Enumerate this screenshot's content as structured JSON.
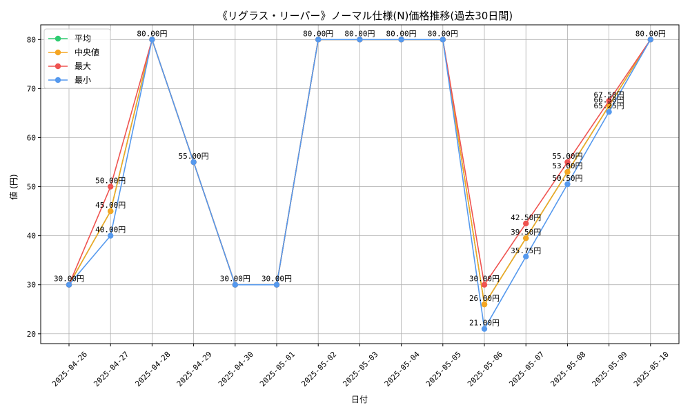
{
  "chart_data": {
    "type": "line",
    "title": "《リグラス・リーパー》ノーマル仕様(N)価格推移(過去30日間)",
    "xlabel": "日付",
    "ylabel": "値 (円)",
    "ylim": [
      18,
      83
    ],
    "yticks": [
      20,
      30,
      40,
      50,
      60,
      70,
      80
    ],
    "grid": true,
    "legend_position": "top-left",
    "categories": [
      "2025-04-26",
      "2025-04-27",
      "2025-04-28",
      "2025-04-29",
      "2025-04-30",
      "2025-05-01",
      "2025-05-02",
      "2025-05-03",
      "2025-05-04",
      "2025-05-05",
      "2025-05-06",
      "2025-05-07",
      "2025-05-08",
      "2025-05-09",
      "2025-05-10"
    ],
    "series": [
      {
        "name": "平均",
        "color": "#2ecc71",
        "values": [
          30,
          45,
          80,
          55,
          30,
          30,
          80,
          80,
          80,
          80,
          26,
          39.5,
          53,
          66.5,
          80
        ]
      },
      {
        "name": "中央値",
        "color": "#f5a623",
        "values": [
          30,
          45,
          80,
          55,
          30,
          30,
          80,
          80,
          80,
          80,
          26,
          39.5,
          53,
          66.5,
          80
        ]
      },
      {
        "name": "最大",
        "color": "#ef5350",
        "values": [
          30,
          50,
          80,
          55,
          30,
          30,
          80,
          80,
          80,
          80,
          30,
          42.5,
          55,
          67.5,
          80
        ]
      },
      {
        "name": "最小",
        "color": "#5599ee",
        "values": [
          30,
          40,
          80,
          55,
          30,
          30,
          80,
          80,
          80,
          80,
          21,
          35.75,
          50.5,
          65.25,
          80
        ]
      }
    ],
    "data_labels": [
      {
        "text": "30.00円",
        "category": 0,
        "value": 30
      },
      {
        "text": "45.00円",
        "category": 1,
        "value": 45
      },
      {
        "text": "80.00円",
        "category": 2,
        "value": 80
      },
      {
        "text": "55.00円",
        "category": 3,
        "value": 55
      },
      {
        "text": "30.00円",
        "category": 4,
        "value": 30
      },
      {
        "text": "30.00円",
        "category": 5,
        "value": 30
      },
      {
        "text": "80.00円",
        "category": 6,
        "value": 80
      },
      {
        "text": "80.00円",
        "category": 7,
        "value": 80
      },
      {
        "text": "80.00円",
        "category": 8,
        "value": 80
      },
      {
        "text": "80.00円",
        "category": 9,
        "value": 80
      },
      {
        "text": "26.00円",
        "category": 10,
        "value": 26
      },
      {
        "text": "39.50円",
        "category": 11,
        "value": 39.5
      },
      {
        "text": "53.00円",
        "category": 12,
        "value": 53
      },
      {
        "text": "66.50円",
        "category": 13,
        "value": 66.5
      },
      {
        "text": "80.00円",
        "category": 14,
        "value": 80
      },
      {
        "text": "50.00円",
        "category": 1,
        "value": 50
      },
      {
        "text": "40.00円",
        "category": 1,
        "value": 40
      },
      {
        "text": "30.00円",
        "category": 10,
        "value": 30
      },
      {
        "text": "21.00円",
        "category": 10,
        "value": 21
      },
      {
        "text": "42.50円",
        "category": 11,
        "value": 42.5
      },
      {
        "text": "35.75円",
        "category": 11,
        "value": 35.75
      },
      {
        "text": "55.00円",
        "category": 12,
        "value": 55
      },
      {
        "text": "50.50円",
        "category": 12,
        "value": 50.5
      },
      {
        "text": "67.50円",
        "category": 13,
        "value": 67.5
      },
      {
        "text": "65.25円",
        "category": 13,
        "value": 65.25
      }
    ]
  }
}
